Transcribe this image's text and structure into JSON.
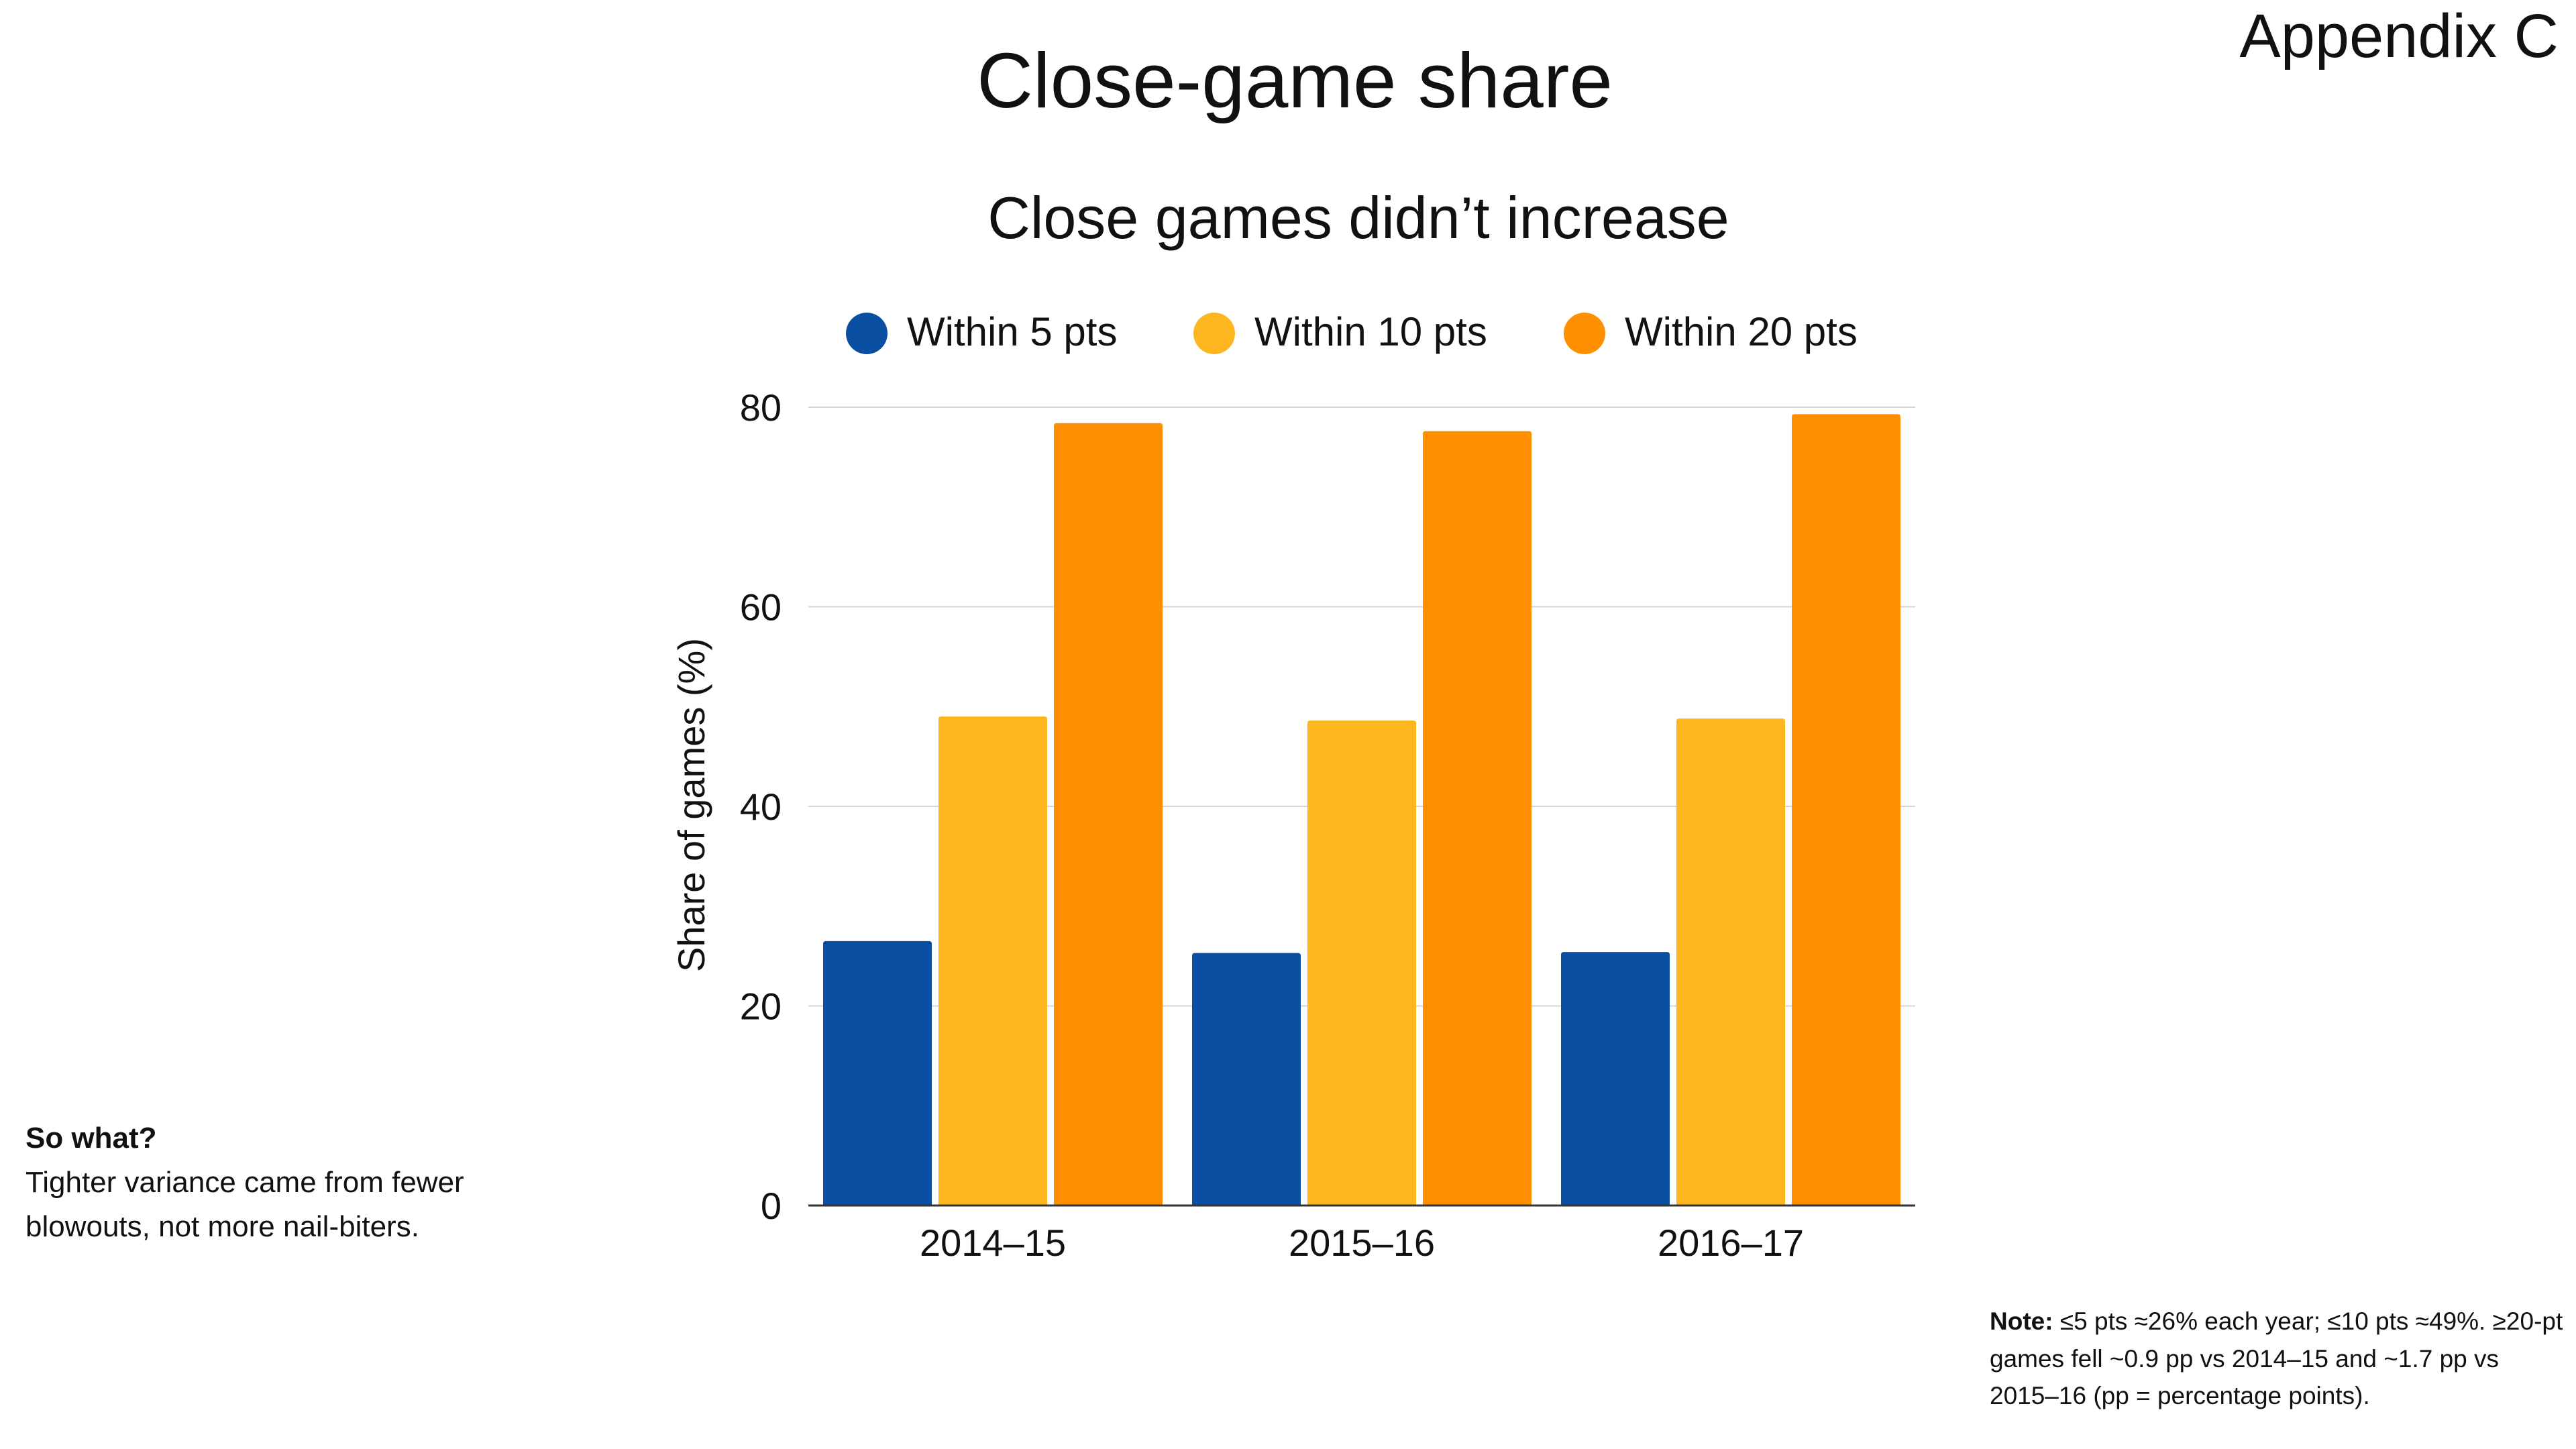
{
  "page": {
    "title": "Close-game share",
    "appendix_label": "Appendix C"
  },
  "so_what": {
    "label": "So what?",
    "text": "Tighter variance came from fewer blowouts, not more nail-biters."
  },
  "note": {
    "label": "Note:",
    "text": "≤5 pts ≈26% each year; ≤10 pts ≈49%. ≥20-pt games fell ~0.9 pp vs 2014–15 and ~1.7 pp vs 2015–16 (pp = percentage points)."
  },
  "chart_data": {
    "type": "bar",
    "title": "Close games didn’t increase",
    "xlabel": "",
    "ylabel": "Share of games (%)",
    "categories": [
      "2014–15",
      "2015–16",
      "2016–17"
    ],
    "series": [
      {
        "name": "Within 5 pts",
        "color": "#0b4fa3",
        "values": [
          26.5,
          25.3,
          25.4
        ]
      },
      {
        "name": "Within 10 pts",
        "color": "#fdb61f",
        "values": [
          49.0,
          48.6,
          48.8
        ]
      },
      {
        "name": "Within 20 pts",
        "color": "#fd8f00",
        "values": [
          78.4,
          77.6,
          79.3
        ]
      }
    ],
    "ylim": [
      0,
      80
    ],
    "yticks": [
      0,
      20,
      40,
      60,
      80
    ],
    "grid": true,
    "legend": "top"
  }
}
